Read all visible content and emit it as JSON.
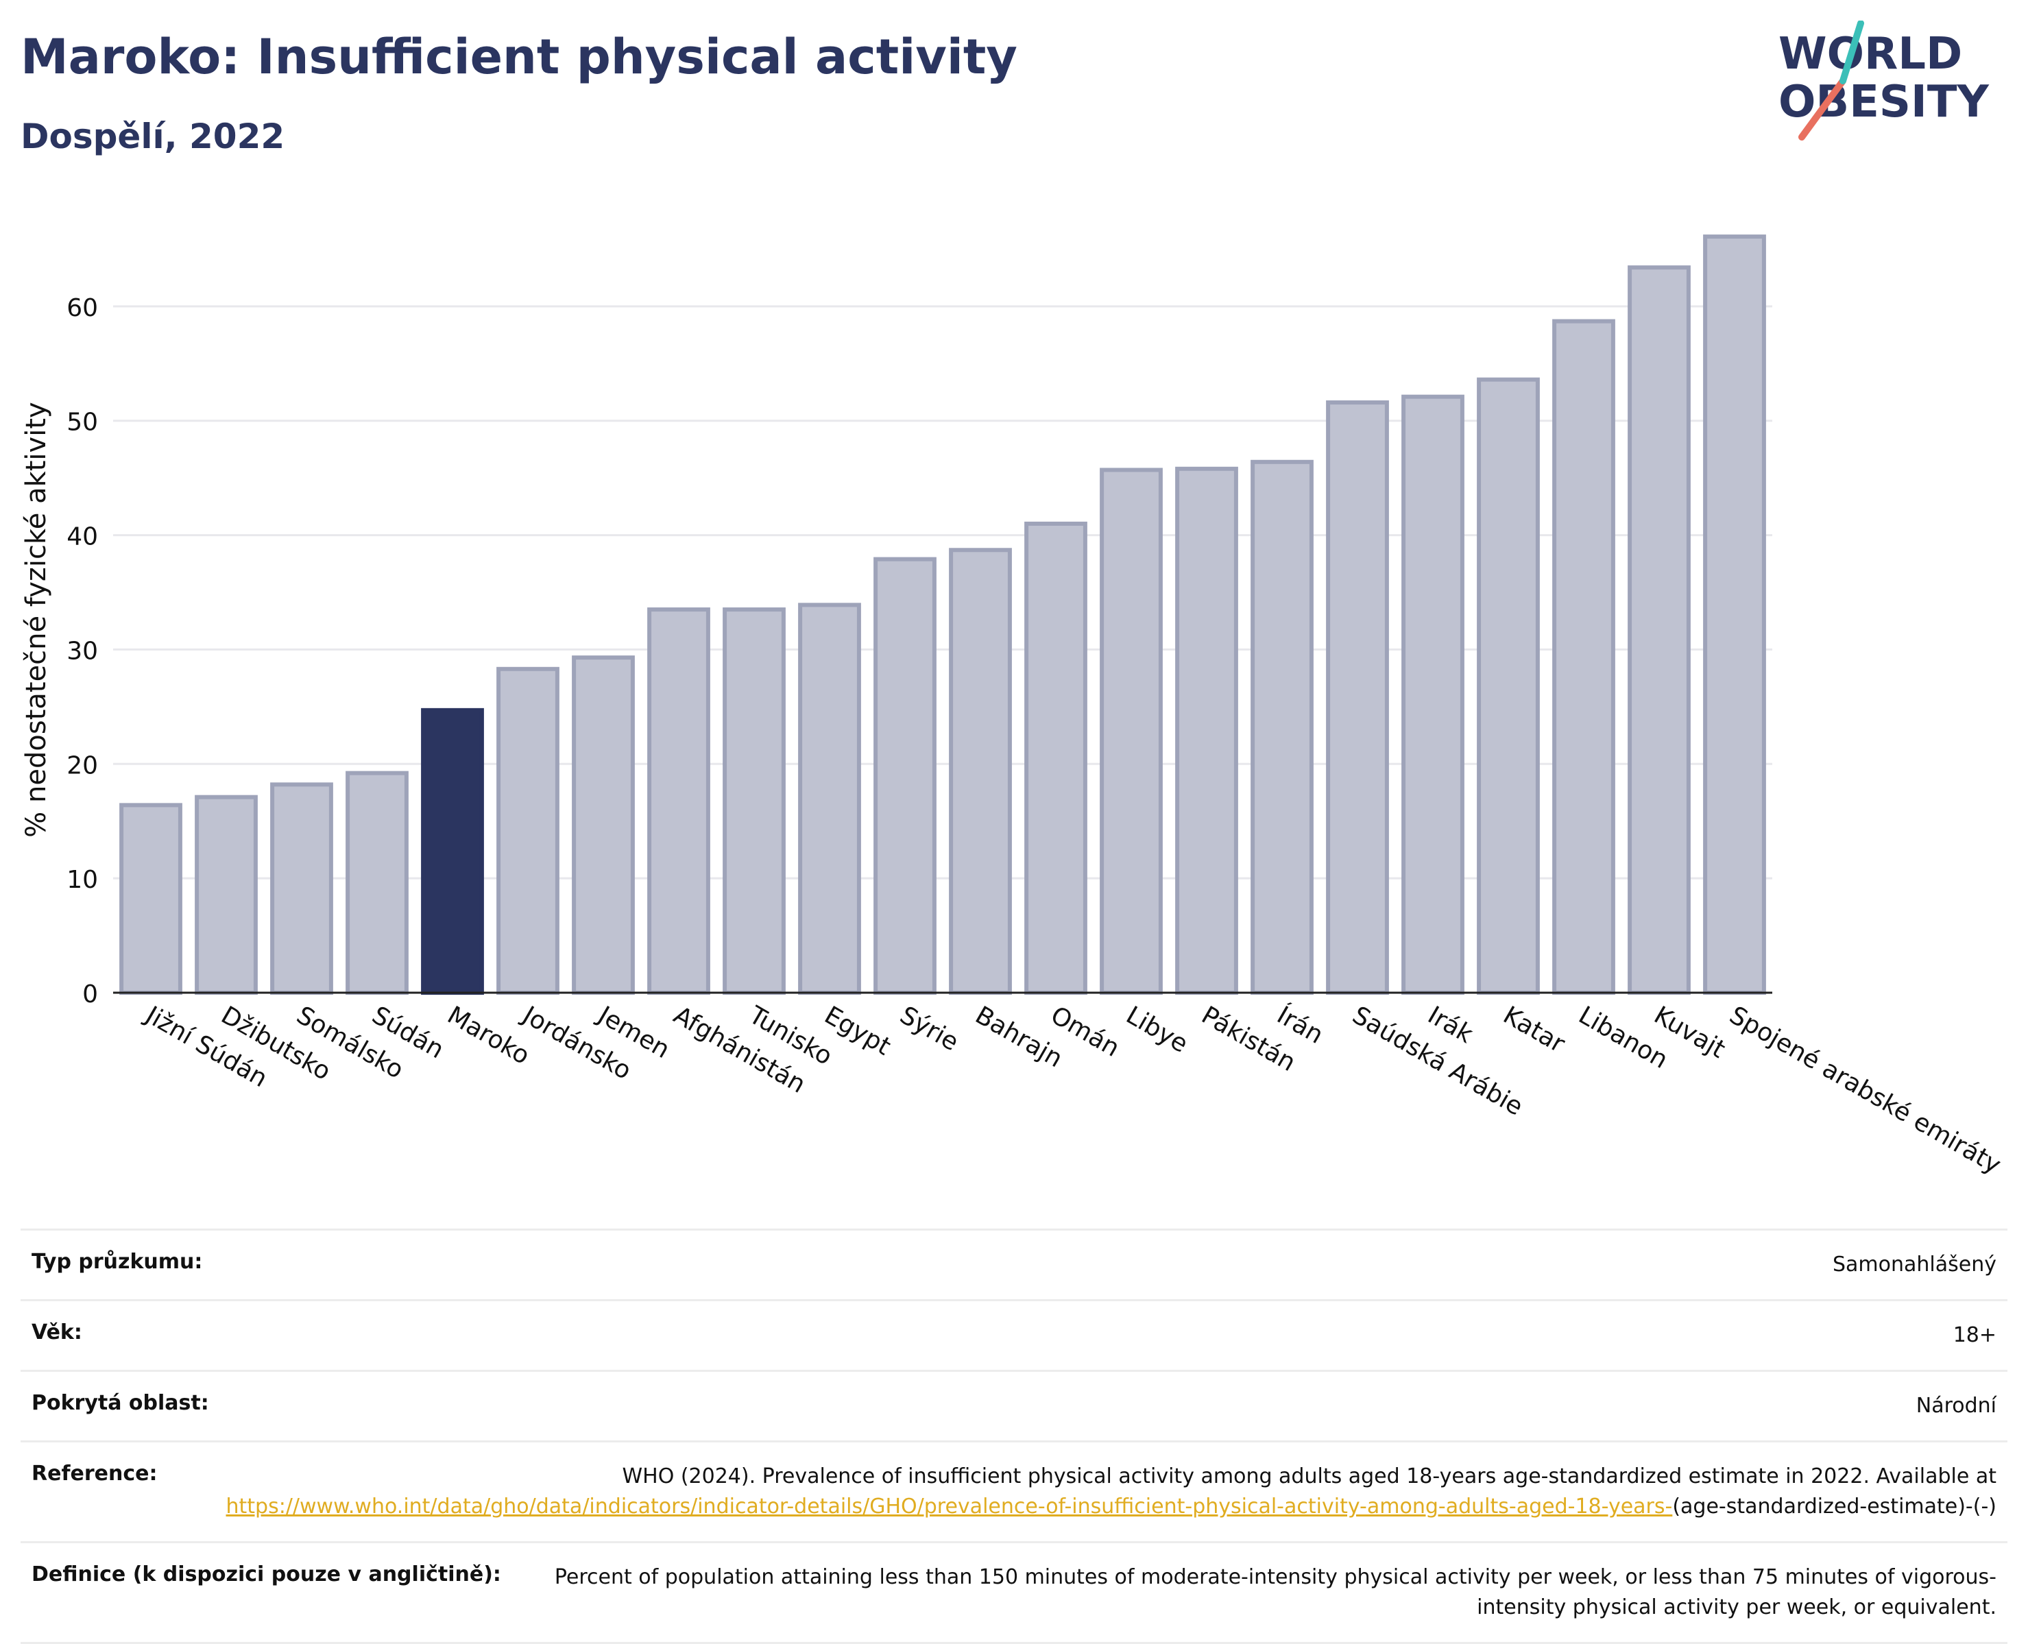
{
  "header": {
    "title": "Maroko: Insufficient physical activity",
    "subtitle": "Dospělí, 2022"
  },
  "logo": {
    "line1": "WORLD",
    "line2": "OBESITY"
  },
  "chart_data": {
    "type": "bar",
    "xlabel": "",
    "ylabel": "% nedostatečné fyzické aktivity",
    "ylim": [
      0,
      70
    ],
    "yticks": [
      0,
      10,
      20,
      30,
      40,
      50,
      60
    ],
    "grid": true,
    "legend": "none",
    "highlight": "Maroko",
    "colors": {
      "bar": "#bfc2d1",
      "bar_edge": "#9ea3b9",
      "highlight": "#2b3560",
      "grid": "#e8e8ec"
    },
    "categories": [
      "Jižní Súdán",
      "Džibutsko",
      "Somálsko",
      "Súdán",
      "Maroko",
      "Jordánsko",
      "Jemen",
      "Afghánistán",
      "Tunisko",
      "Egypt",
      "Sýrie",
      "Bahrajn",
      "Omán",
      "Libye",
      "Pákistán",
      "Írán",
      "Saúdská Arábie",
      "Irák",
      "Katar",
      "Libanon",
      "Kuvajt",
      "Spojené arabské emiráty"
    ],
    "values": [
      16.4,
      17.1,
      18.2,
      19.2,
      24.7,
      28.3,
      29.3,
      33.5,
      33.5,
      33.9,
      37.9,
      38.7,
      41.0,
      45.7,
      45.8,
      46.4,
      51.6,
      52.1,
      53.6,
      58.7,
      63.4,
      66.1
    ]
  },
  "meta": {
    "survey_label": "Typ průzkumu:",
    "survey_value": "Samonahlášený",
    "age_label": "Věk:",
    "age_value": "18+",
    "area_label": "Pokrytá oblast:",
    "area_value": "Národní",
    "ref_label": "Reference:",
    "ref_text": "WHO (2024). Prevalence of insufficient physical activity among adults aged 18-years age-standardized estimate in 2022. Available at",
    "ref_link": "https://www.who.int/data/gho/data/indicators/indicator-details/GHO/prevalence-of-insufficient-physical-activity-among-adults-aged-18-years-",
    "ref_tail": "(age-standardized-estimate)-(-)",
    "def_label": "Definice (k dispozici pouze v angličtině):",
    "def_value": "Percent of population attaining less than 150 minutes of moderate-intensity physical activity per week, or less than 75 minutes of vigorous-intensity physical activity per week, or equivalent."
  }
}
